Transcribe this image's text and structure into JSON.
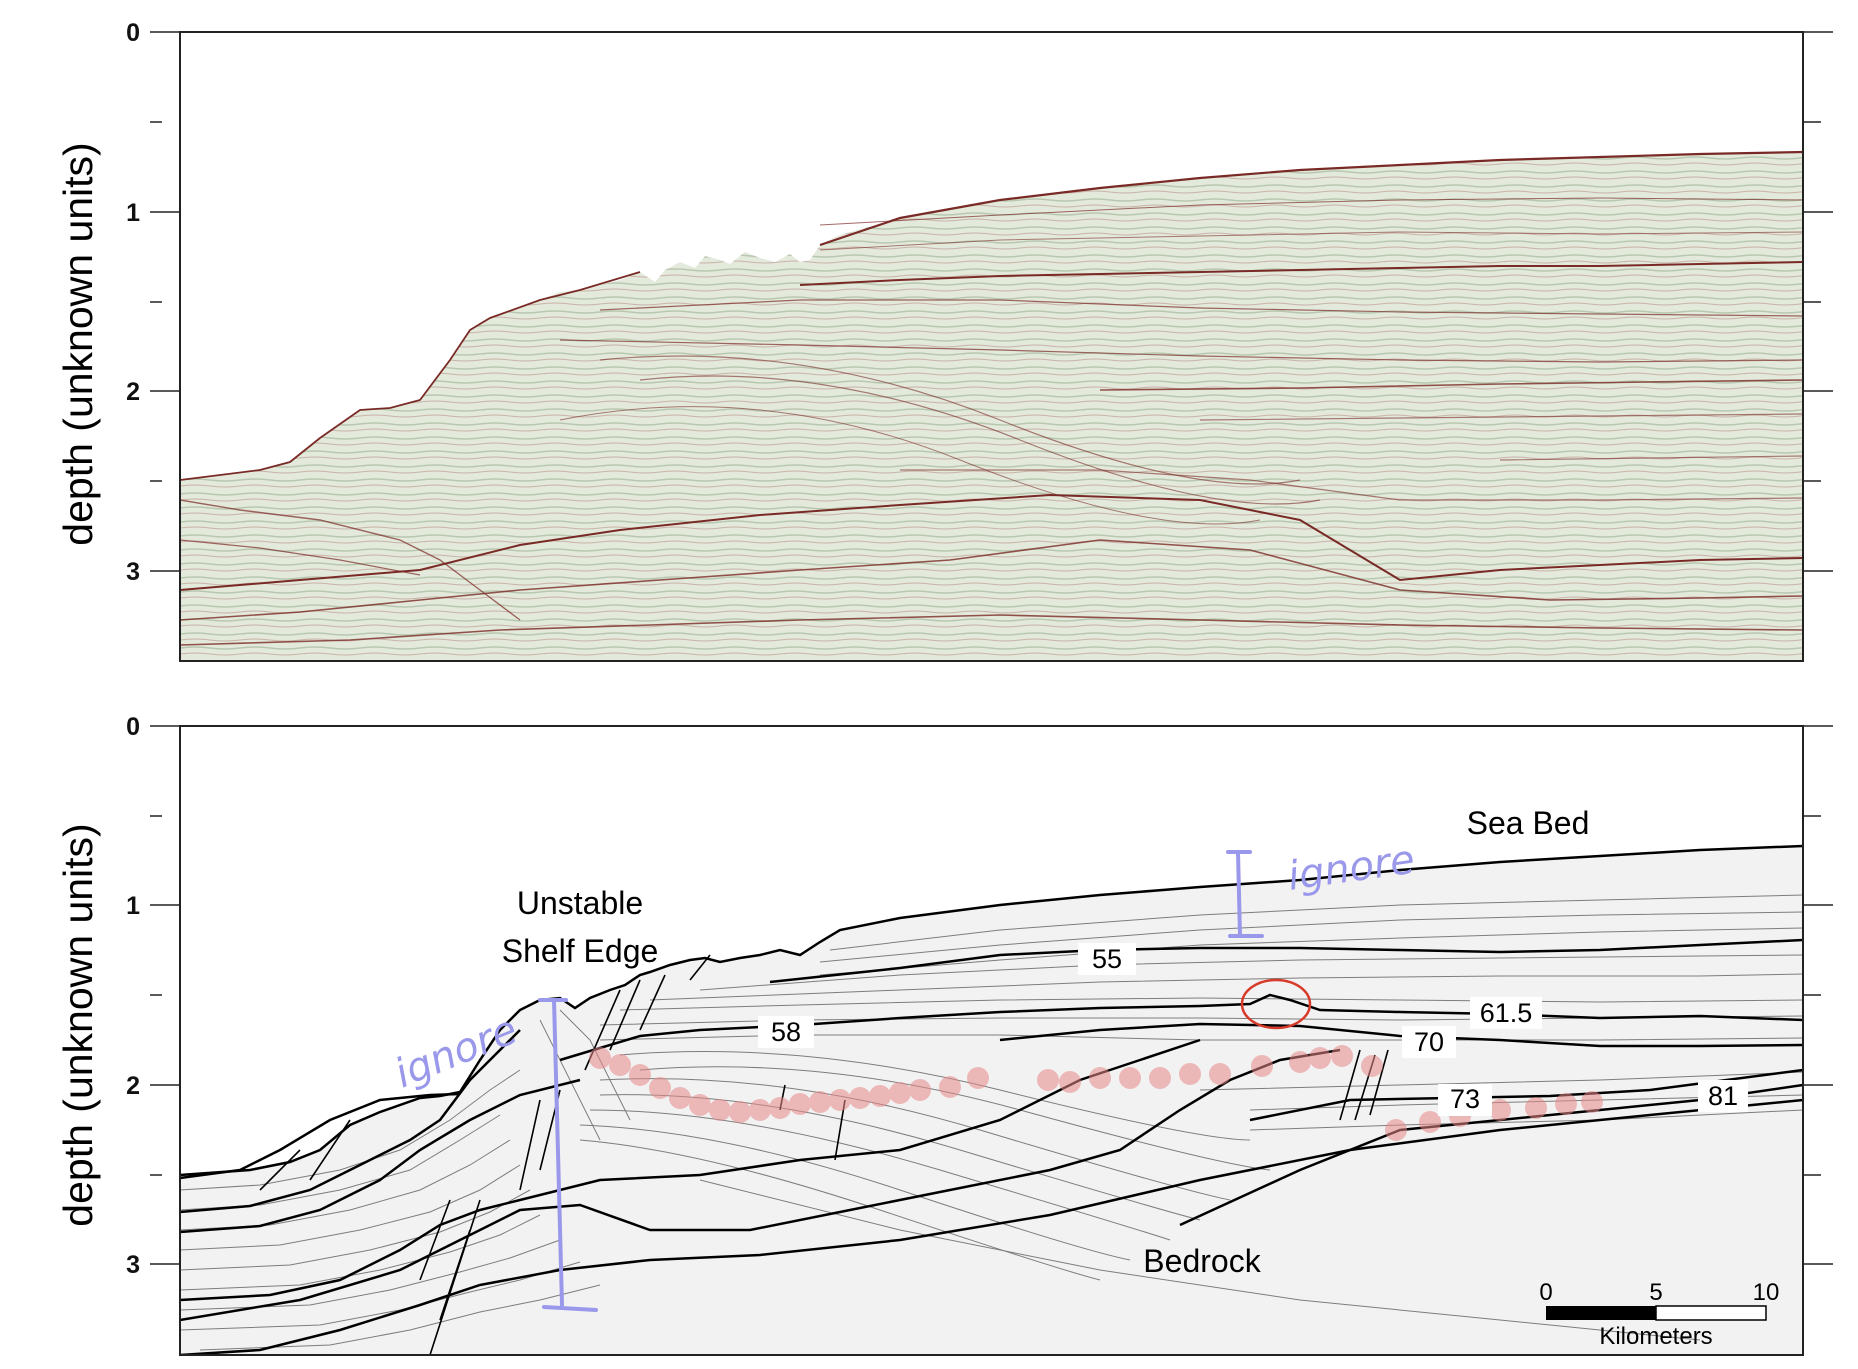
{
  "colors": {
    "seismic_background": "#e3eadb",
    "seismic_reflector": "#7a2a26",
    "annotation_lavender": "#9a98ea",
    "marker_pink": "#e88888",
    "circle_red": "#d83a2a"
  },
  "top_panel": {
    "y_axis_label": "depth (unknown units)",
    "y_ticks": [
      "0",
      "1",
      "2",
      "3"
    ]
  },
  "bottom_panel": {
    "y_axis_label": "depth (unknown units)",
    "y_ticks": [
      "0",
      "1",
      "2",
      "3"
    ],
    "region_labels": {
      "sea_bed": "Sea Bed",
      "shelf_line1": "Unstable",
      "shelf_line2": "Shelf Edge",
      "bedrock": "Bedrock"
    },
    "horizon_labels": [
      "55",
      "58",
      "61.5",
      "70",
      "73",
      "81"
    ],
    "handwritten": [
      "ignore",
      "ignore"
    ],
    "scale_bar": {
      "ticks": [
        "0",
        "5",
        "10"
      ],
      "unit": "Kilometers"
    }
  }
}
